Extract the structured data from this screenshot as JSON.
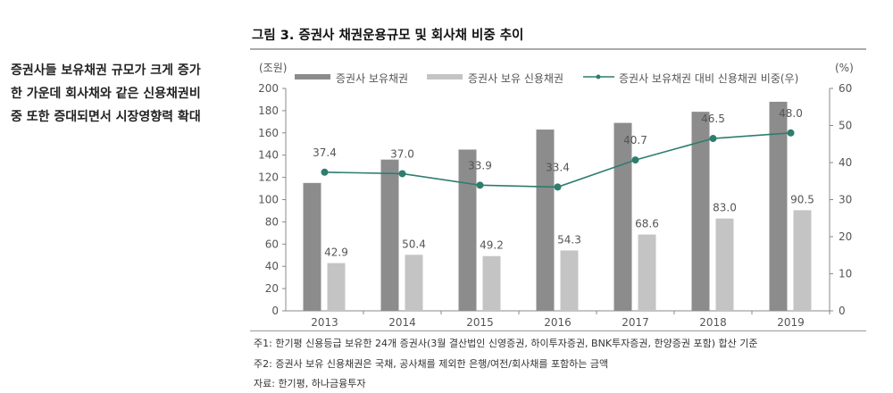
{
  "side_text": [
    "증권사들 보유채권 규모가 크게 증가",
    "한 가운데 회사채와 같은 신용채권비",
    "중 또한 증대되면서 시장영향력 확대"
  ],
  "notes": [
    "주1: 한기평 신용등급 보유한 24개 증권사(3월 결산법인 신영증권, 하이투자증권, BNK투자증권, 한양증권 포함) 합산 기준",
    "주2: 증권사 보유 신용채권은 국채, 공사채를 제외한 은행/여전/회사채를 포함하는 금액",
    "자료: 한기평, 하나금융투자"
  ],
  "chart_data": {
    "type": "bar+line",
    "title": "그림 3. 증권사 채권운용규모 및 회사채 비중 추이",
    "ylabel_left": "(조원)",
    "ylabel_right": "(%)",
    "ylim_left": [
      0,
      200
    ],
    "yticks_left": [
      0,
      20,
      40,
      60,
      80,
      100,
      120,
      140,
      160,
      180,
      200
    ],
    "ylim_right": [
      0,
      60
    ],
    "yticks_right": [
      0,
      10,
      20,
      30,
      40,
      50,
      60
    ],
    "categories": [
      "2013",
      "2014",
      "2015",
      "2016",
      "2017",
      "2018",
      "2019"
    ],
    "legend_position": "top",
    "grid": false,
    "series": [
      {
        "name": "증권사 보유채권",
        "type": "bar",
        "axis": "left",
        "color": "#8c8c8c",
        "values": [
          115,
          136,
          145,
          163,
          169,
          179,
          188
        ]
      },
      {
        "name": "증권사 보유 신용채권",
        "type": "bar",
        "axis": "left",
        "color": "#c4c4c4",
        "values": [
          42.9,
          50.4,
          49.2,
          54.3,
          68.6,
          83.0,
          90.5
        ],
        "labels": [
          "42.9",
          "50.4",
          "49.2",
          "54.3",
          "68.6",
          "83.0",
          "90.5"
        ]
      },
      {
        "name": "증권사 보유채권 대비 신용채권 비중(우)",
        "type": "line",
        "axis": "right",
        "color": "#2e7d6e",
        "values": [
          37.4,
          37.0,
          33.9,
          33.4,
          40.7,
          46.5,
          48.0
        ],
        "labels": [
          "37.4",
          "37.0",
          "33.9",
          "33.4",
          "40.7",
          "46.5",
          "48.0"
        ]
      }
    ]
  }
}
